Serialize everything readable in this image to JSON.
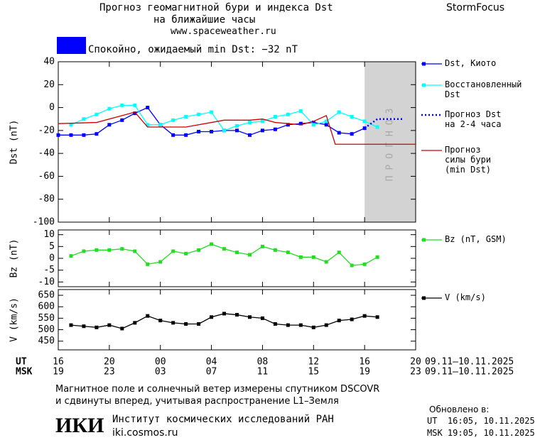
{
  "header": {
    "title": [
      "Прогноз геомагнитной бури и индекса Dst",
      "на ближайшие часы"
    ],
    "url": "www.spaceweather.ru",
    "brand": "StormFocus",
    "status": {
      "color": "#0000ff",
      "text": "Спокойно, ожидаемый min Dst: −32 nT"
    }
  },
  "chart_data": [
    {
      "type": "line",
      "ylabel": "Dst (nT)",
      "ylim": [
        -100,
        40
      ],
      "yticks": [
        40,
        20,
        0,
        -20,
        -40,
        -60,
        -80,
        -100
      ],
      "forecast_band": {
        "x": [
          40,
          44
        ],
        "label": "ПРОГНОЗ",
        "color": "#d3d3d3"
      },
      "series": [
        {
          "name": "Dst, Киото",
          "color": "#0000ff",
          "markers": true,
          "x": [
            16,
            17,
            18,
            19,
            20,
            21,
            22,
            23,
            24,
            25,
            26,
            27,
            28,
            29,
            30,
            31,
            32,
            33,
            34,
            35,
            36,
            37,
            38,
            39,
            40
          ],
          "values": [
            -24,
            -24,
            -24,
            -23,
            -15,
            -11,
            -5,
            0,
            -15,
            -24,
            -24,
            -21,
            -21,
            -20,
            -20,
            -24,
            -20,
            -19,
            -15,
            -14,
            -13,
            -15,
            -22,
            -23,
            -18
          ]
        },
        {
          "name": "Восстановленный\nDst",
          "color": "#00ffff",
          "markers": true,
          "x": [
            17,
            18,
            19,
            20,
            21,
            22,
            23,
            24,
            25,
            26,
            27,
            28,
            29,
            30,
            31,
            32,
            33,
            34,
            35,
            36,
            37,
            38,
            39,
            40,
            41
          ],
          "values": [
            -15,
            -10,
            -6,
            -1,
            2,
            2,
            -15,
            -15,
            -11,
            -8,
            -6,
            -4,
            -20,
            -16,
            -13,
            -12,
            -8,
            -6,
            -3,
            -15,
            -12,
            -4,
            -8,
            -12,
            -17
          ]
        },
        {
          "name": "Прогноз Dst\nна 2-4 часа",
          "color": "#0000ff",
          "style": "dotted",
          "markers": false,
          "x": [
            40,
            41,
            42,
            43
          ],
          "values": [
            -18,
            -10,
            -10,
            -10
          ]
        },
        {
          "name": "Прогноз\nсилы бури\n(min Dst)",
          "color": "#d00000",
          "markers": false,
          "x": [
            16,
            19,
            21,
            22,
            23,
            26,
            28,
            29,
            31,
            32,
            33,
            35,
            36,
            37,
            37.7,
            44
          ],
          "values": [
            -14,
            -13,
            -7,
            -4,
            -17,
            -17,
            -13,
            -11,
            -11,
            -10,
            -13,
            -15,
            -12,
            -7,
            -32,
            -32
          ]
        }
      ]
    },
    {
      "type": "line",
      "ylabel": "Bz (nT)",
      "ylim": [
        -12,
        12
      ],
      "yticks": [
        10,
        5,
        0,
        -5,
        -10
      ],
      "series": [
        {
          "name": "Bz (nT, GSM)",
          "color": "#22dd22",
          "markers": true,
          "x": [
            17,
            18,
            19,
            20,
            21,
            22,
            23,
            24,
            25,
            26,
            27,
            28,
            29,
            30,
            31,
            32,
            33,
            34,
            35,
            36,
            37,
            38,
            39,
            40,
            41
          ],
          "values": [
            1,
            3,
            3.5,
            3.5,
            4,
            3,
            -2.5,
            -1.5,
            3,
            2,
            3.5,
            6,
            4,
            2.5,
            1.5,
            5,
            3.5,
            2.5,
            0.5,
            0.5,
            -1.5,
            2.5,
            -3,
            -2.5,
            0.5
          ]
        }
      ]
    },
    {
      "type": "line",
      "ylabel": "V (km/s)",
      "ylim": [
        412,
        675
      ],
      "yticks": [
        450,
        500,
        550,
        600,
        650
      ],
      "xlim": [
        16,
        44
      ],
      "xticks": [
        16,
        20,
        {
          "value": 24,
          "label": "00"
        },
        {
          "value": 28,
          "label": "04"
        },
        {
          "value": 32,
          "label": "08"
        },
        {
          "value": 36,
          "label": "12"
        },
        {
          "value": 40,
          "label": "16"
        },
        {
          "value": 44,
          "label": "20"
        }
      ],
      "x2ticks": [
        {
          "value": 16,
          "label": "19"
        },
        {
          "value": 20,
          "label": "23"
        },
        {
          "value": 24,
          "label": "03"
        },
        {
          "value": 28,
          "label": "07"
        },
        {
          "value": 32,
          "label": "11"
        },
        {
          "value": 36,
          "label": "15"
        },
        {
          "value": 40,
          "label": "19"
        },
        {
          "value": 44,
          "label": "23"
        }
      ],
      "xlabel": "UT",
      "x2label": "MSK",
      "xnote": "09.11–10.11.2025",
      "x2note": "09.11–10.11.2025",
      "series": [
        {
          "name": "V (km/s)",
          "color": "#000000",
          "markers": true,
          "x": [
            17,
            18,
            19,
            20,
            21,
            22,
            23,
            24,
            25,
            26,
            27,
            28,
            29,
            30,
            31,
            32,
            33,
            34,
            35,
            36,
            37,
            38,
            39,
            40,
            41
          ],
          "values": [
            520,
            515,
            510,
            520,
            505,
            530,
            560,
            540,
            530,
            525,
            525,
            555,
            570,
            565,
            555,
            550,
            525,
            520,
            520,
            510,
            520,
            540,
            545,
            560,
            555
          ]
        }
      ]
    }
  ],
  "footer": {
    "note": [
      "Магнитное поле и солнечный ветер измерены спутником DSCOVR",
      "и сдвинуты вперед, учитывая распространение L1–Земля"
    ],
    "logo": "ИКИ",
    "institute": "Институт космических исследований РАН",
    "site": "iki.cosmos.ru",
    "updated": {
      "title": "Обновлено в:",
      "lines": [
        "UT  16:05, 10.11.2025",
        "MSK 19:05, 10.11.2025"
      ]
    }
  }
}
